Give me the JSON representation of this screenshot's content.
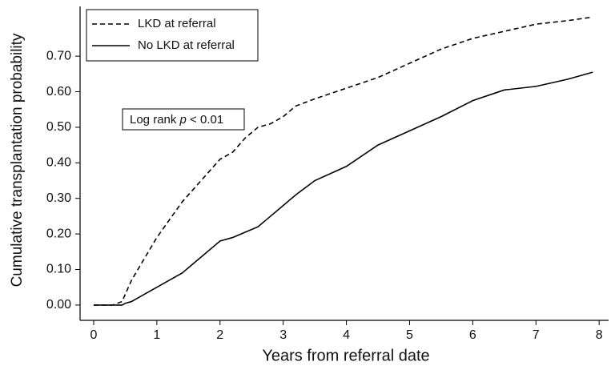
{
  "chart_data": {
    "type": "line",
    "ylabel": "Cumulative transplantation probability",
    "xlabel": "Years from referral date",
    "annotation": {
      "before": "Log rank ",
      "italic": "p",
      "after": " < 0.01"
    },
    "x": [
      0,
      0.3,
      0.45,
      0.5,
      0.6,
      0.7,
      0.8,
      1.0,
      1.2,
      1.4,
      1.6,
      1.8,
      2.0,
      2.2,
      2.4,
      2.6,
      2.8,
      3.0,
      3.2,
      3.5,
      4.0,
      4.5,
      5.0,
      5.5,
      6.0,
      6.5,
      7.0,
      7.5,
      7.9
    ],
    "series": [
      {
        "name": "LKD at referral",
        "color": "#000000",
        "dash": true,
        "values": [
          0,
          0,
          0.01,
          0.03,
          0.07,
          0.1,
          0.13,
          0.19,
          0.24,
          0.29,
          0.33,
          0.37,
          0.41,
          0.43,
          0.47,
          0.5,
          0.51,
          0.53,
          0.56,
          0.58,
          0.61,
          0.64,
          0.68,
          0.72,
          0.75,
          0.77,
          0.79,
          0.8,
          0.81
        ]
      },
      {
        "name": "No LKD at referral",
        "color": "#000000",
        "dash": false,
        "values": [
          0,
          0,
          0,
          0.005,
          0.01,
          0.02,
          0.03,
          0.05,
          0.07,
          0.09,
          0.12,
          0.15,
          0.18,
          0.19,
          0.205,
          0.22,
          0.25,
          0.28,
          0.31,
          0.35,
          0.39,
          0.45,
          0.49,
          0.53,
          0.575,
          0.605,
          0.615,
          0.635,
          0.655
        ]
      }
    ],
    "xlim": [
      -0.215,
      8.15
    ],
    "ylim": [
      -0.043,
      0.84
    ],
    "xticks": [
      0,
      1,
      2,
      3,
      4,
      5,
      6,
      7,
      8
    ],
    "yticks": [
      {
        "value": 0,
        "label": "0.00"
      },
      {
        "value": 0.1,
        "label": "0.10"
      },
      {
        "value": 0.2,
        "label": "0.20"
      },
      {
        "value": 0.3,
        "label": "0.30"
      },
      {
        "value": 0.4,
        "label": "0.40"
      },
      {
        "value": 0.5,
        "label": "0.50"
      },
      {
        "value": 0.6,
        "label": "0.60"
      },
      {
        "value": 0.7,
        "label": "0.70"
      }
    ],
    "legend": "upper left"
  }
}
